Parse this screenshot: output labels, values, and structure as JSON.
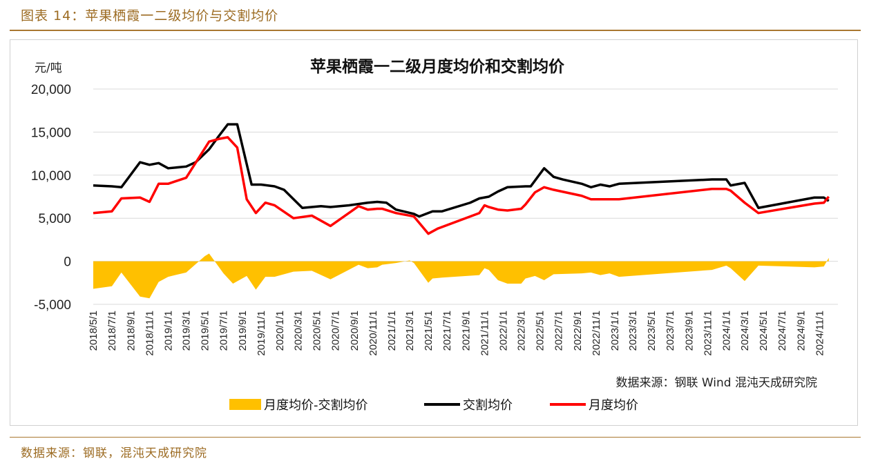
{
  "figure_title": "图表 14：苹果栖霞一二级均价与交割均价",
  "bottom_source": "数据来源：钢联，混沌天成研究院",
  "colors": {
    "accent": "#a9772f",
    "diff": "#ffc000",
    "delivery": "#000000",
    "monthly": "#ff0000",
    "grid": "#d9d9d9"
  },
  "chart_data": {
    "type": "line",
    "title": "苹果栖霞一二级月度均价和交割均价",
    "unit_label": "元/吨",
    "source_note": "数据来源：钢联  Wind 混沌天成研究院",
    "ylim": [
      -5000,
      20000
    ],
    "yticks": [
      20000,
      15000,
      10000,
      5000,
      0,
      -5000
    ],
    "ytick_labels": [
      "20,000",
      "15,000",
      "10,000",
      "5,000",
      "0",
      "-5,000"
    ],
    "xlim": [
      "2018-05-01",
      "2024-12-31"
    ],
    "xtick_labels": [
      "2018/5/1",
      "2018/7/1",
      "2018/9/1",
      "2018/11/1",
      "2019/1/1",
      "2019/3/1",
      "2019/5/1",
      "2019/7/1",
      "2019/9/1",
      "2019/11/1",
      "2020/1/1",
      "2020/3/1",
      "2020/5/1",
      "2020/7/1",
      "2020/9/1",
      "2020/11/1",
      "2021/1/1",
      "2021/3/1",
      "2021/5/1",
      "2021/7/1",
      "2021/9/1",
      "2021/11/1",
      "2022/1/1",
      "2022/3/1",
      "2022/5/1",
      "2022/7/1",
      "2022/9/1",
      "2022/11/1",
      "2023/1/1",
      "2023/3/1",
      "2023/5/1",
      "2023/7/1",
      "2023/9/1",
      "2023/11/1",
      "2024/1/1",
      "2024/3/1",
      "2024/5/1",
      "2024/7/1",
      "2024/9/1",
      "2024/11/1"
    ],
    "grid": "horizontal",
    "legend_position": "bottom",
    "series": [
      {
        "name": "月度均价-交割均价",
        "kind": "area",
        "color": "#ffc000",
        "points": [
          [
            "2018-05-01",
            -3200
          ],
          [
            "2018-07-01",
            -2900
          ],
          [
            "2018-08-01",
            -1300
          ],
          [
            "2018-10-01",
            -4100
          ],
          [
            "2018-11-01",
            -4300
          ],
          [
            "2018-12-01",
            -2400
          ],
          [
            "2019-01-01",
            -1800
          ],
          [
            "2019-03-01",
            -1300
          ],
          [
            "2019-05-01",
            600
          ],
          [
            "2019-05-15",
            900
          ],
          [
            "2019-07-01",
            -1400
          ],
          [
            "2019-08-01",
            -2600
          ],
          [
            "2019-09-15",
            -1700
          ],
          [
            "2019-10-15",
            -3300
          ],
          [
            "2019-11-15",
            -1800
          ],
          [
            "2019-12-15",
            -1800
          ],
          [
            "2020-02-15",
            -1200
          ],
          [
            "2020-04-15",
            -1100
          ],
          [
            "2020-06-15",
            -2100
          ],
          [
            "2020-09-15",
            -400
          ],
          [
            "2020-10-15",
            -800
          ],
          [
            "2020-11-15",
            -700
          ],
          [
            "2020-12-01",
            -400
          ],
          [
            "2021-01-15",
            -200
          ],
          [
            "2021-03-01",
            100
          ],
          [
            "2021-03-15",
            -200
          ],
          [
            "2021-05-01",
            -2500
          ],
          [
            "2021-05-15",
            -2000
          ],
          [
            "2021-06-15",
            -1900
          ],
          [
            "2021-10-15",
            -1600
          ],
          [
            "2021-11-01",
            -800
          ],
          [
            "2021-11-15",
            -1000
          ],
          [
            "2021-12-15",
            -2200
          ],
          [
            "2022-01-15",
            -2600
          ],
          [
            "2022-03-01",
            -2600
          ],
          [
            "2022-03-15",
            -2000
          ],
          [
            "2022-04-15",
            -1700
          ],
          [
            "2022-05-15",
            -2200
          ],
          [
            "2022-06-15",
            -1500
          ],
          [
            "2022-09-15",
            -1400
          ],
          [
            "2022-10-15",
            -1300
          ],
          [
            "2022-11-15",
            -1600
          ],
          [
            "2022-12-15",
            -1400
          ],
          [
            "2023-01-15",
            -1800
          ],
          [
            "2023-11-15",
            -1000
          ],
          [
            "2024-01-01",
            -500
          ],
          [
            "2024-01-15",
            -800
          ],
          [
            "2024-03-01",
            -2300
          ],
          [
            "2024-04-15",
            -500
          ],
          [
            "2024-10-15",
            -700
          ],
          [
            "2024-11-15",
            -600
          ],
          [
            "2024-12-01",
            400
          ]
        ]
      },
      {
        "name": "交割均价",
        "kind": "line",
        "color": "#000000",
        "points": [
          [
            "2018-05-01",
            8800
          ],
          [
            "2018-07-01",
            8700
          ],
          [
            "2018-08-01",
            8600
          ],
          [
            "2018-10-01",
            11500
          ],
          [
            "2018-11-01",
            11200
          ],
          [
            "2018-12-01",
            11400
          ],
          [
            "2019-01-01",
            10800
          ],
          [
            "2019-03-01",
            11000
          ],
          [
            "2019-04-01",
            11500
          ],
          [
            "2019-05-15",
            13000
          ],
          [
            "2019-06-15",
            14500
          ],
          [
            "2019-07-15",
            15900
          ],
          [
            "2019-08-15",
            15900
          ],
          [
            "2019-10-01",
            8900
          ],
          [
            "2019-11-01",
            8900
          ],
          [
            "2019-12-15",
            8700
          ],
          [
            "2020-01-15",
            8300
          ],
          [
            "2020-03-15",
            6200
          ],
          [
            "2020-05-15",
            6400
          ],
          [
            "2020-06-15",
            6300
          ],
          [
            "2020-08-15",
            6500
          ],
          [
            "2020-10-15",
            6800
          ],
          [
            "2020-11-15",
            6900
          ],
          [
            "2020-12-15",
            6800
          ],
          [
            "2021-01-15",
            6000
          ],
          [
            "2021-03-15",
            5500
          ],
          [
            "2021-04-01",
            5200
          ],
          [
            "2021-05-15",
            5800
          ],
          [
            "2021-06-15",
            5800
          ],
          [
            "2021-09-15",
            6800
          ],
          [
            "2021-10-15",
            7300
          ],
          [
            "2021-11-15",
            7500
          ],
          [
            "2021-12-15",
            8100
          ],
          [
            "2022-01-15",
            8600
          ],
          [
            "2022-03-15",
            8700
          ],
          [
            "2022-04-01",
            8700
          ],
          [
            "2022-05-15",
            10800
          ],
          [
            "2022-06-15",
            9800
          ],
          [
            "2022-07-15",
            9500
          ],
          [
            "2022-09-15",
            9000
          ],
          [
            "2022-10-15",
            8600
          ],
          [
            "2022-11-15",
            8900
          ],
          [
            "2022-12-15",
            8700
          ],
          [
            "2023-01-15",
            9000
          ],
          [
            "2023-11-15",
            9500
          ],
          [
            "2024-01-01",
            9500
          ],
          [
            "2024-01-15",
            8800
          ],
          [
            "2024-03-01",
            9100
          ],
          [
            "2024-04-15",
            6200
          ],
          [
            "2024-06-15",
            6600
          ],
          [
            "2024-10-15",
            7400
          ],
          [
            "2024-11-15",
            7400
          ],
          [
            "2024-12-01",
            7000
          ]
        ]
      },
      {
        "name": "月度均价",
        "kind": "line",
        "color": "#ff0000",
        "points": [
          [
            "2018-05-01",
            5600
          ],
          [
            "2018-07-01",
            5800
          ],
          [
            "2018-08-01",
            7300
          ],
          [
            "2018-10-01",
            7400
          ],
          [
            "2018-11-01",
            6900
          ],
          [
            "2018-12-01",
            9000
          ],
          [
            "2019-01-01",
            9000
          ],
          [
            "2019-03-01",
            9700
          ],
          [
            "2019-05-15",
            13900
          ],
          [
            "2019-06-15",
            14200
          ],
          [
            "2019-07-15",
            14400
          ],
          [
            "2019-08-15",
            13200
          ],
          [
            "2019-09-15",
            7200
          ],
          [
            "2019-10-15",
            5600
          ],
          [
            "2019-11-15",
            6800
          ],
          [
            "2019-12-15",
            6500
          ],
          [
            "2020-02-15",
            5000
          ],
          [
            "2020-04-15",
            5300
          ],
          [
            "2020-06-15",
            4100
          ],
          [
            "2020-09-15",
            6400
          ],
          [
            "2020-10-15",
            6000
          ],
          [
            "2020-11-15",
            6100
          ],
          [
            "2020-12-01",
            6100
          ],
          [
            "2021-01-15",
            5600
          ],
          [
            "2021-03-01",
            5300
          ],
          [
            "2021-03-15",
            5200
          ],
          [
            "2021-05-01",
            3200
          ],
          [
            "2021-06-01",
            3800
          ],
          [
            "2021-10-15",
            5600
          ],
          [
            "2021-11-01",
            6500
          ],
          [
            "2021-11-15",
            6300
          ],
          [
            "2021-12-15",
            6000
          ],
          [
            "2022-01-15",
            5900
          ],
          [
            "2022-03-01",
            6100
          ],
          [
            "2022-03-15",
            6600
          ],
          [
            "2022-04-15",
            8000
          ],
          [
            "2022-05-15",
            8600
          ],
          [
            "2022-06-15",
            8300
          ],
          [
            "2022-09-15",
            7600
          ],
          [
            "2022-10-15",
            7200
          ],
          [
            "2023-01-15",
            7200
          ],
          [
            "2023-11-15",
            8400
          ],
          [
            "2024-01-01",
            8400
          ],
          [
            "2024-01-15",
            8200
          ],
          [
            "2024-03-01",
            6800
          ],
          [
            "2024-04-15",
            5600
          ],
          [
            "2024-10-15",
            6700
          ],
          [
            "2024-11-15",
            6800
          ],
          [
            "2024-12-01",
            7500
          ]
        ]
      }
    ],
    "legend": [
      "月度均价-交割均价",
      "交割均价",
      "月度均价"
    ]
  }
}
